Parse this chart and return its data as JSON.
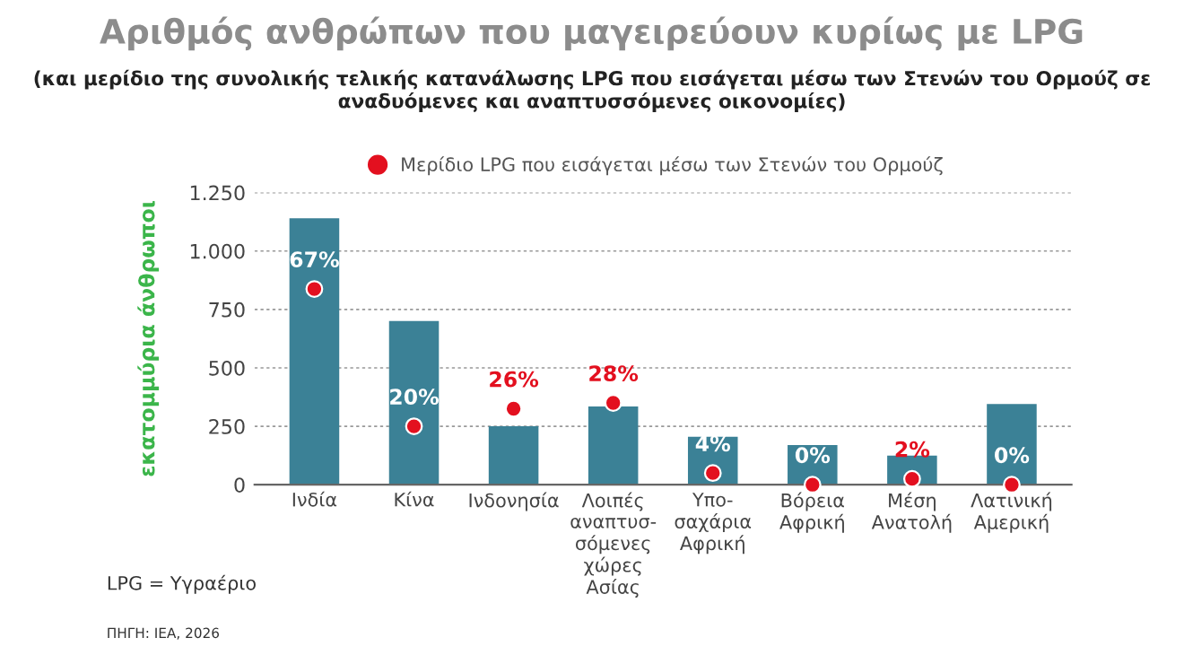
{
  "chart_data": {
    "type": "bar",
    "title": "Αριθμός ανθρώπων που μαγειρεύουν κυρίως με LPG",
    "subtitle": "(και μερίδιο της συνολικής τελικής κατανάλωσης LPG που εισάγεται μέσω των Στενών του Ορμούζ σε αναδυόμενες και αναπτυσσόμενες οικονομίες)",
    "ylabel": "εκατομμύρια άνθρωποι",
    "categories": [
      "Ινδία",
      "Κίνα",
      "Ινδονησία",
      "Λοιπές\nαναπτυσ-\nσόμενες\nχώρες\nΑσίας",
      "Υπο-\nσαχάρια\nΑφρική",
      "Βόρεια\nΑφρική",
      "Μέση\nΑνατολή",
      "Λατινική\nΑμερική"
    ],
    "series": [
      {
        "color": "#3b8196",
        "values": [
          1140,
          700,
          250,
          335,
          205,
          170,
          125,
          345
        ]
      },
      {
        "type": "scatter",
        "name": "Μερίδιο LPG που εισάγεται μέσω των Στενών του Ορμούζ",
        "color": "#e3101f",
        "axis": "y2",
        "marker": "circle",
        "values": [
          67,
          20,
          26,
          28,
          4,
          0,
          2,
          0
        ],
        "value_labels": [
          "67%",
          "20%",
          "26%",
          "28%",
          "4%",
          "0%",
          "2%",
          "0%"
        ]
      }
    ],
    "ylim": [
      0,
      1250
    ],
    "yticks": [
      0,
      250,
      500,
      750,
      {
        "value": 1000,
        "label": "1.000"
      },
      {
        "value": 1250,
        "label": "1.250"
      }
    ],
    "y2lim": [
      0,
      100
    ],
    "grid": "y",
    "legend": "top",
    "annotations": [
      "LPG = Υγραέριο",
      "ΠΗΓΗ: IEA, 2026"
    ]
  }
}
